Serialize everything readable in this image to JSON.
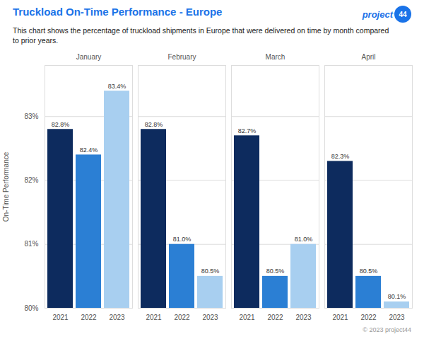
{
  "chart_data": {
    "type": "bar",
    "title": "Truckload On-Time Performance - Europe",
    "subtitle": "This chart shows the percentage of truckload shipments in Europe that were delivered on time by month compared\nto prior years.",
    "ylabel": "On-Time Performance",
    "annotations": [
      "project",
      "44",
      "© 2023 project44"
    ],
    "categories": [
      "January",
      "February",
      "March",
      "April"
    ],
    "series": [
      {
        "name": "2021",
        "color": "#0d2b5e",
        "values": [
          82.8,
          82.8,
          82.7,
          82.3
        ],
        "value_labels": [
          "82.8%",
          "82.8%",
          "82.7%",
          "82.3%"
        ]
      },
      {
        "name": "2022",
        "color": "#2b7fd4",
        "values": [
          82.4,
          81.0,
          80.5,
          80.5
        ],
        "value_labels": [
          "82.4%",
          "81.0%",
          "80.5%",
          "80.5%"
        ]
      },
      {
        "name": "2023",
        "color": "#a8cff0",
        "values": [
          83.4,
          80.5,
          81.0,
          80.1
        ],
        "value_labels": [
          "83.4%",
          "80.5%",
          "81.0%",
          "80.1%"
        ]
      }
    ],
    "ylim": [
      80.0,
      83.8
    ],
    "yticks": [
      {
        "value": 80.0,
        "label": "80%"
      },
      {
        "value": 81.0,
        "label": "81%"
      },
      {
        "value": 82.0,
        "label": "82%"
      },
      {
        "value": 83.0,
        "label": "83%"
      }
    ],
    "grid": true,
    "data_labels": true
  }
}
